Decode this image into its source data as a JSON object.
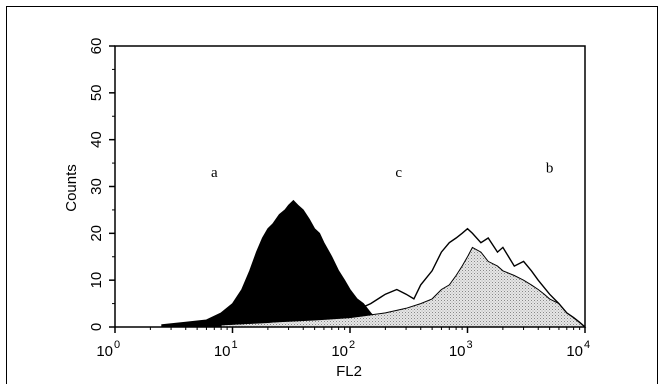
{
  "chart_data": {
    "type": "area",
    "x_scale": "log",
    "xlim": [
      1,
      10000
    ],
    "ylim": [
      0,
      60
    ],
    "xlabel": "FL2",
    "ylabel": "Counts",
    "x_ticks": [
      {
        "value": 1,
        "base": "10",
        "exp": "0"
      },
      {
        "value": 10,
        "base": "10",
        "exp": "1"
      },
      {
        "value": 100,
        "base": "10",
        "exp": "2"
      },
      {
        "value": 1000,
        "base": "10",
        "exp": "3"
      },
      {
        "value": 10000,
        "base": "10",
        "exp": "4"
      }
    ],
    "y_ticks": [
      "0",
      "10",
      "20",
      "30",
      "40",
      "50",
      "60"
    ],
    "grid": false,
    "series": [
      {
        "name": "a",
        "fill": "#000000",
        "x": [
          2.5,
          4,
          6,
          8,
          10,
          12,
          14,
          16,
          18,
          20,
          22,
          25,
          28,
          30,
          33,
          36,
          40,
          45,
          50,
          55,
          60,
          70,
          80,
          90,
          100,
          115,
          130,
          150,
          170,
          200
        ],
        "y": [
          0.5,
          1,
          1.5,
          3,
          5,
          8,
          12,
          16,
          19,
          21,
          22,
          24,
          25,
          26,
          27,
          26,
          25,
          23,
          21,
          20,
          18,
          15,
          12,
          10,
          8,
          6,
          5,
          3,
          1.5,
          0.5
        ]
      },
      {
        "name": "b",
        "fill": "#cfcfcf",
        "x": [
          8,
          20,
          50,
          100,
          200,
          300,
          400,
          500,
          600,
          700,
          800,
          900,
          1000,
          1100,
          1300,
          1500,
          1800,
          2000,
          2500,
          3000,
          3500,
          4000,
          4500,
          5000,
          6000,
          7000,
          8000,
          9000,
          10000
        ],
        "y": [
          0.5,
          1,
          1.5,
          2,
          3,
          4,
          5,
          6,
          8,
          9,
          11,
          13,
          15,
          17,
          16,
          14,
          13,
          12,
          11,
          10,
          9,
          8,
          7,
          6,
          5,
          3,
          2,
          1,
          0
        ]
      },
      {
        "name": "c",
        "fill": "none",
        "x": [
          8,
          20,
          50,
          100,
          150,
          200,
          250,
          300,
          350,
          400,
          500,
          600,
          700,
          800,
          900,
          1000,
          1100,
          1300,
          1500,
          1800,
          2000,
          2500,
          3000,
          3500,
          4000,
          5000,
          6000,
          7000,
          8000,
          9000,
          10000
        ],
        "y": [
          0.5,
          1,
          2,
          3,
          5,
          7,
          8,
          7,
          6,
          9,
          12,
          16,
          18,
          19,
          20,
          21,
          20,
          18,
          19,
          16,
          17,
          13,
          14,
          12,
          10,
          7,
          5,
          3,
          2,
          1,
          0
        ]
      }
    ],
    "annotations": [
      {
        "text": "a",
        "x": 7,
        "y": 32
      },
      {
        "text": "c",
        "x": 260,
        "y": 32
      },
      {
        "text": "b",
        "x": 5000,
        "y": 33
      }
    ]
  }
}
